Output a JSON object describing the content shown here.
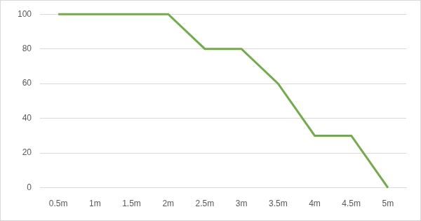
{
  "chart_data": {
    "type": "line",
    "categories": [
      "0.5m",
      "1m",
      "1.5m",
      "2m",
      "2.5m",
      "3m",
      "3.5m",
      "4m",
      "4.5m",
      "5m"
    ],
    "values": [
      100,
      100,
      100,
      100,
      80,
      80,
      60,
      30,
      30,
      0
    ],
    "color": "#70ad47",
    "marker": "none",
    "ylim": [
      0,
      100
    ],
    "yticks": [
      0,
      20,
      40,
      60,
      80,
      100
    ],
    "grid": true
  }
}
